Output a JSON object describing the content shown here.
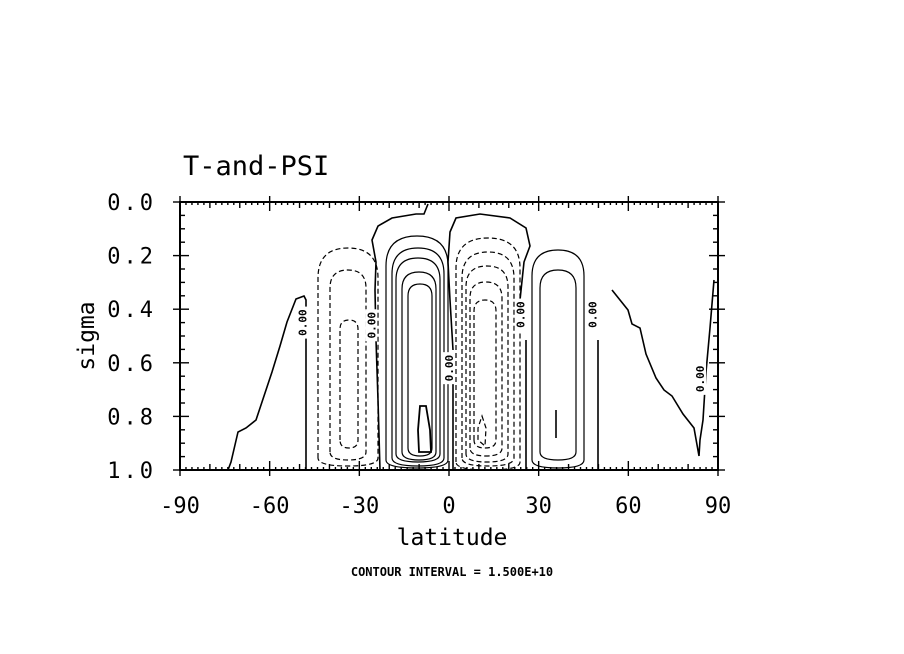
{
  "chart_data": {
    "type": "contour",
    "title": "T-and-PSI",
    "xlabel": "latitude",
    "ylabel": "sigma",
    "xlim": [
      -90,
      90
    ],
    "ylim": [
      1.0,
      0.0
    ],
    "x_ticks": [
      "-90",
      "-60",
      "-30",
      "0",
      "30",
      "60",
      "90"
    ],
    "y_ticks": [
      "0.0",
      "0.2",
      "0.4",
      "0.6",
      "0.8",
      "1.0"
    ],
    "footer": "CONTOUR INTERVAL = 1.500E+10",
    "contour_interval": 15000000000,
    "contour_labels": [
      {
        "text": "0.00",
        "lat": -49,
        "sigma": 0.45
      },
      {
        "text": "0.00",
        "lat": -26,
        "sigma": 0.46
      },
      {
        "text": "0.00",
        "lat": 0,
        "sigma": 0.62
      },
      {
        "text": "0.00",
        "lat": 24,
        "sigma": 0.42
      },
      {
        "text": "0.00",
        "lat": 48,
        "sigma": 0.42
      },
      {
        "text": "0.00",
        "lat": 84,
        "sigma": 0.66
      }
    ],
    "negative_contours": "dashed",
    "positive_contours": "solid",
    "grid": false
  }
}
